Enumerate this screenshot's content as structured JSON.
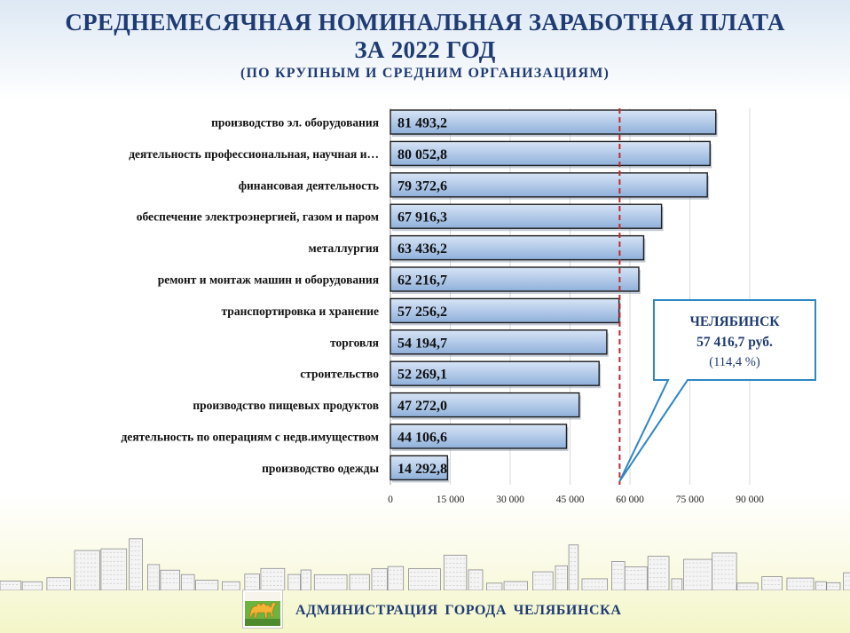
{
  "header": {
    "title_line1": "СРЕДНЕМЕСЯЧНАЯ НОМИНАЛЬНАЯ ЗАРАБОТНАЯ ПЛАТА",
    "title_line2": "ЗА 2022 ГОД",
    "subtitle": "(ПО КРУПНЫМ И СРЕДНИМ ОРГАНИЗАЦИЯМ)"
  },
  "chart_data": {
    "type": "bar",
    "orientation": "horizontal",
    "categories": [
      "производство эл. оборудования",
      "деятельность профессиональная, научная и…",
      "финансовая деятельность",
      "обеспечение электроэнергией, газом и паром",
      "металлургия",
      "ремонт и монтаж машин и оборудования",
      "транспортировка и хранение",
      "торговля",
      "строительство",
      "производство пищевых продуктов",
      "деятельность по операциям с недв.имуществом",
      "производство одежды"
    ],
    "values": [
      81493.2,
      80052.8,
      79372.6,
      67916.3,
      63436.2,
      62216.7,
      57256.2,
      54194.7,
      52269.1,
      47272.0,
      44106.6,
      14292.8
    ],
    "value_labels": [
      "81 493,2",
      "80 052,8",
      "79 372,6",
      "67 916,3",
      "63 436,2",
      "62 216,7",
      "57 256,2",
      "54 194,7",
      "52 269,1",
      "47 272,0",
      "44 106,6",
      "14 292,8"
    ],
    "xlim": [
      0,
      90000
    ],
    "ticks": [
      0,
      15000,
      30000,
      45000,
      60000,
      75000,
      90000
    ],
    "tick_labels": [
      "0",
      "15 000",
      "30 000",
      "45 000",
      "60 000",
      "75 000",
      "90 000"
    ],
    "grid": true,
    "reference_line": {
      "value": 57416.7,
      "city": "ЧЕЛЯБИНСК",
      "value_label": "57 416,7 руб.",
      "percent_label": "(114,4 %)"
    }
  },
  "colors": {
    "title": "#1f3b73",
    "bar_fill": "#b7cdea",
    "bar_border": "#1c1c1c",
    "reference_line": "#c0282e",
    "callout_border": "#2f86c2"
  },
  "footer": {
    "logo_icon": "camel-coat-of-arms-icon",
    "text": "АДМИНИСТРАЦИЯ ГОРОДА ЧЕЛЯБИНСКА"
  }
}
